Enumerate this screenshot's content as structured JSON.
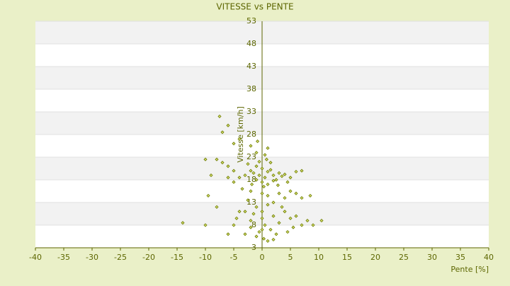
{
  "chart_data": {
    "type": "scatter",
    "title": "VITESSE vs PENTE",
    "x_label": "Pente [%]",
    "y_label": "Vitesse [km/h]",
    "xlim": [
      -40,
      40
    ],
    "xticks": [
      -40,
      -35,
      -30,
      -25,
      -20,
      -15,
      -10,
      -5,
      0,
      5,
      10,
      15,
      20,
      25,
      30,
      35,
      40
    ],
    "ylim": [
      3,
      53
    ],
    "yticks": [
      3,
      8,
      13,
      18,
      23,
      28,
      33,
      38,
      43,
      48,
      53
    ],
    "grid": true,
    "series": [
      {
        "color": "#6b7a00",
        "x": [
          -2,
          -1.5,
          -1,
          -0.5,
          0,
          0.5,
          1,
          1.5,
          2,
          2.5,
          3,
          3.5,
          4,
          -1,
          0,
          1,
          2,
          -2.5,
          -0.5,
          0.8,
          1.5,
          -1.8,
          0.3,
          2.8,
          4.5,
          5,
          6,
          7,
          -3,
          -4,
          -5,
          -6,
          -7,
          -8,
          -10,
          -9,
          -6,
          -5,
          -3.5,
          -2,
          0,
          1,
          3,
          4,
          5,
          6,
          7,
          8.5,
          -1,
          1,
          -2,
          0.5,
          -0.8,
          -4,
          -5,
          -7,
          -6,
          -7.5,
          -1,
          0,
          1,
          2,
          -2,
          0.5,
          3,
          4,
          5,
          -3,
          -1.5,
          0,
          1.5,
          2.5,
          -0.5,
          0.3,
          -2,
          3.5,
          6,
          7,
          8,
          10.5,
          9,
          -5,
          -6,
          -8,
          -10,
          -14,
          -4,
          -3,
          -2.5,
          2,
          4.5,
          5.5,
          1,
          -1,
          0,
          2,
          -4.5,
          -9.5
        ],
        "values": [
          20,
          19.5,
          21,
          19,
          20.5,
          18.5,
          19.8,
          20.2,
          19,
          18,
          19.5,
          18.8,
          19.2,
          18,
          17.5,
          17,
          17.8,
          21.5,
          22,
          22.5,
          21.8,
          17,
          16.5,
          16.8,
          17.5,
          18.5,
          19.8,
          20,
          19,
          18.5,
          20,
          21,
          21.8,
          22.5,
          22.5,
          19,
          18.5,
          17.5,
          16,
          15.5,
          15,
          14.5,
          15,
          14,
          15.5,
          15,
          14,
          14.5,
          24,
          25,
          25.5,
          23.5,
          26.5,
          27,
          26,
          28.5,
          30,
          32,
          12,
          11,
          12.5,
          10,
          9,
          8,
          8.5,
          11,
          9.5,
          11,
          10.5,
          9.5,
          7,
          6,
          6.5,
          5,
          7.5,
          12,
          10,
          8,
          9,
          9,
          8,
          8,
          6,
          12,
          8,
          8.5,
          11,
          6,
          13.5,
          13,
          6.5,
          7.5,
          4.5,
          5.5,
          7,
          4.8,
          9.5,
          14.5
        ]
      }
    ]
  }
}
